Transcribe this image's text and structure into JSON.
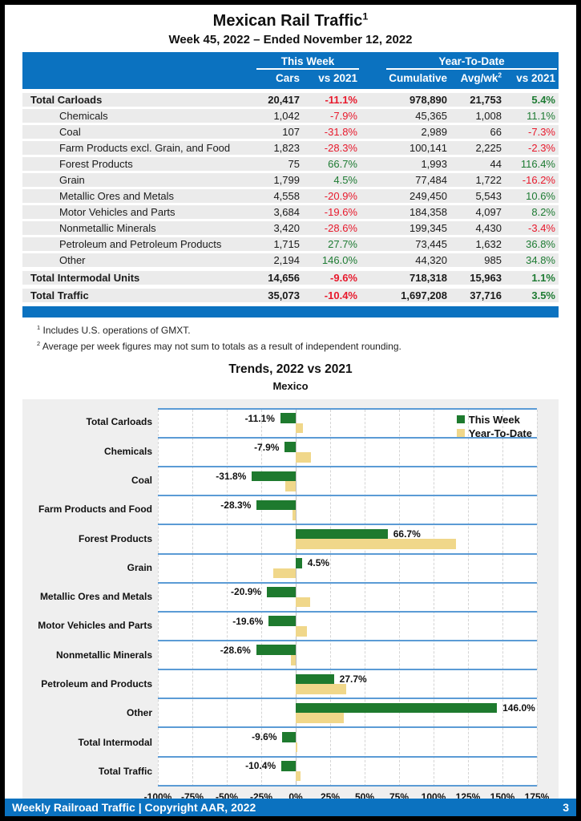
{
  "colors": {
    "header_blue": "#0b72c0",
    "grid_blue": "#5b9bd5",
    "bar_green": "#1e7a2e",
    "bar_yellow": "#f0d78a",
    "pos_green": "#1e7b33",
    "neg_red": "#e8192c",
    "row_gray": "#ebebeb",
    "chart_bg": "#efefef"
  },
  "header": {
    "title": "Mexican Rail Traffic",
    "title_sup": "1",
    "subtitle": "Week 45, 2022 – Ended November 12, 2022"
  },
  "table": {
    "group_this_week": "This Week",
    "group_ytd": "Year-To-Date",
    "columns": {
      "cars": "Cars",
      "tw_vs": "vs 2021",
      "cumulative": "Cumulative",
      "avg_wk": "Avg/wk",
      "avg_wk_sup": "2",
      "ytd_vs": "vs 2021"
    },
    "rows": [
      {
        "label": "Total Carloads",
        "total": true,
        "cars": "20,417",
        "tw_vs": "-11.1%",
        "cumulative": "978,890",
        "avg_wk": "21,753",
        "ytd_vs": "5.4%"
      },
      {
        "label": "Chemicals",
        "total": false,
        "cars": "1,042",
        "tw_vs": "-7.9%",
        "cumulative": "45,365",
        "avg_wk": "1,008",
        "ytd_vs": "11.1%"
      },
      {
        "label": "Coal",
        "total": false,
        "cars": "107",
        "tw_vs": "-31.8%",
        "cumulative": "2,989",
        "avg_wk": "66",
        "ytd_vs": "-7.3%"
      },
      {
        "label": "Farm Products excl. Grain, and Food",
        "total": false,
        "cars": "1,823",
        "tw_vs": "-28.3%",
        "cumulative": "100,141",
        "avg_wk": "2,225",
        "ytd_vs": "-2.3%"
      },
      {
        "label": "Forest Products",
        "total": false,
        "cars": "75",
        "tw_vs": "66.7%",
        "cumulative": "1,993",
        "avg_wk": "44",
        "ytd_vs": "116.4%"
      },
      {
        "label": "Grain",
        "total": false,
        "cars": "1,799",
        "tw_vs": "4.5%",
        "cumulative": "77,484",
        "avg_wk": "1,722",
        "ytd_vs": "-16.2%"
      },
      {
        "label": "Metallic Ores and Metals",
        "total": false,
        "cars": "4,558",
        "tw_vs": "-20.9%",
        "cumulative": "249,450",
        "avg_wk": "5,543",
        "ytd_vs": "10.6%"
      },
      {
        "label": "Motor Vehicles and Parts",
        "total": false,
        "cars": "3,684",
        "tw_vs": "-19.6%",
        "cumulative": "184,358",
        "avg_wk": "4,097",
        "ytd_vs": "8.2%"
      },
      {
        "label": "Nonmetallic Minerals",
        "total": false,
        "cars": "3,420",
        "tw_vs": "-28.6%",
        "cumulative": "199,345",
        "avg_wk": "4,430",
        "ytd_vs": "-3.4%"
      },
      {
        "label": "Petroleum and Petroleum Products",
        "total": false,
        "cars": "1,715",
        "tw_vs": "27.7%",
        "cumulative": "73,445",
        "avg_wk": "1,632",
        "ytd_vs": "36.8%"
      },
      {
        "label": "Other",
        "total": false,
        "cars": "2,194",
        "tw_vs": "146.0%",
        "cumulative": "44,320",
        "avg_wk": "985",
        "ytd_vs": "34.8%"
      },
      {
        "label": "Total Intermodal Units",
        "total": true,
        "cars": "14,656",
        "tw_vs": "-9.6%",
        "cumulative": "718,318",
        "avg_wk": "15,963",
        "ytd_vs": "1.1%"
      },
      {
        "label": "Total Traffic",
        "total": true,
        "cars": "35,073",
        "tw_vs": "-10.4%",
        "cumulative": "1,697,208",
        "avg_wk": "37,716",
        "ytd_vs": "3.5%"
      }
    ]
  },
  "footnotes": [
    {
      "marker": "1",
      "text": "Includes U.S. operations of GMXT."
    },
    {
      "marker": "2",
      "text": "Average per week figures may not sum to totals as a result of independent rounding."
    }
  ],
  "chart_data": {
    "type": "bar",
    "orientation": "horizontal",
    "title": "Trends, 2022 vs 2021",
    "subtitle": "Mexico",
    "xlabel": "",
    "ylabel": "",
    "xlim": [
      -100,
      175
    ],
    "grid": true,
    "legend_position": "top-right",
    "categories": [
      "Total Carloads",
      "Chemicals",
      "Coal",
      "Farm Products and Food",
      "Forest Products",
      "Grain",
      "Metallic Ores and Metals",
      "Motor Vehicles and Parts",
      "Nonmetallic Minerals",
      "Petroleum and Products",
      "Other",
      "Total Intermodal",
      "Total Traffic"
    ],
    "series": [
      {
        "name": "This Week",
        "values": [
          -11.1,
          -7.9,
          -31.8,
          -28.3,
          66.7,
          4.5,
          -20.9,
          -19.6,
          -28.6,
          27.7,
          146.0,
          -9.6,
          -10.4
        ],
        "labels": [
          "-11.1%",
          "-7.9%",
          "-31.8%",
          "-28.3%",
          "66.7%",
          "4.5%",
          "-20.9%",
          "-19.6%",
          "-28.6%",
          "27.7%",
          "146.0%",
          "-9.6%",
          "-10.4%"
        ]
      },
      {
        "name": "Year-To-Date",
        "values": [
          5.4,
          11.1,
          -7.3,
          -2.3,
          116.4,
          -16.2,
          10.6,
          8.2,
          -3.4,
          36.8,
          34.8,
          1.1,
          3.5
        ],
        "labels": []
      }
    ],
    "xticks": [
      -100,
      -75,
      -50,
      -25,
      0,
      25,
      50,
      75,
      100,
      125,
      150,
      175
    ],
    "xtick_labels": [
      "-100%",
      "-75%",
      "-50%",
      "-25%",
      "0%",
      "25%",
      "50%",
      "75%",
      "100%",
      "125%",
      "150%",
      "175%"
    ]
  },
  "footer": {
    "text": "Weekly Railroad Traffic | Copyright AAR, 2022",
    "page_number": "3"
  }
}
